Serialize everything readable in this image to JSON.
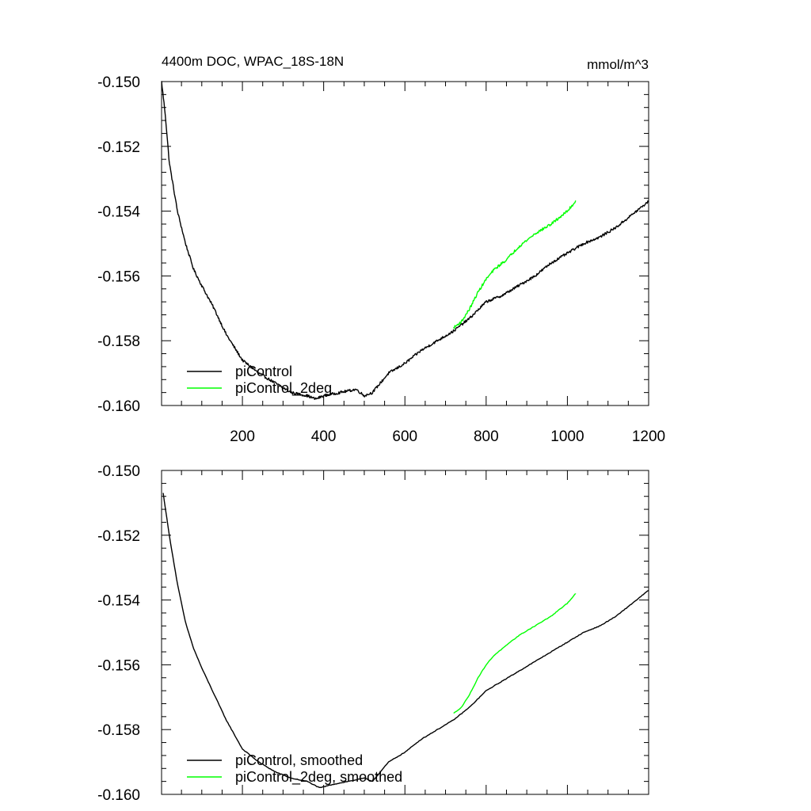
{
  "chart_data": [
    {
      "type": "line",
      "title": "4400m DOC, WPAC_18S-18N",
      "units": "mmol/m^3",
      "xlim": [
        1,
        1200
      ],
      "ylim": [
        -0.16,
        -0.15
      ],
      "x_ticks": [
        200,
        400,
        600,
        800,
        1000,
        1200
      ],
      "x_tick_labels": [
        "200",
        "400",
        "600",
        "800",
        "1000",
        "1200"
      ],
      "y_ticks": [
        -0.15,
        -0.152,
        -0.154,
        -0.156,
        -0.158,
        -0.16
      ],
      "y_tick_labels": [
        "-0.150",
        "-0.152",
        "-0.154",
        "-0.156",
        "-0.158",
        "-0.160"
      ],
      "grid": false,
      "legend_position": "bottom-left",
      "series": [
        {
          "name": "piControl",
          "color": "#000000",
          "noisy": true,
          "points": [
            [
              1,
              -0.15
            ],
            [
              10,
              -0.151
            ],
            [
              20,
              -0.1525
            ],
            [
              40,
              -0.154
            ],
            [
              60,
              -0.155
            ],
            [
              80,
              -0.1558
            ],
            [
              100,
              -0.1563
            ],
            [
              130,
              -0.157
            ],
            [
              160,
              -0.1578
            ],
            [
              200,
              -0.1586
            ],
            [
              240,
              -0.159
            ],
            [
              280,
              -0.1593
            ],
            [
              320,
              -0.1596
            ],
            [
              360,
              -0.1597
            ],
            [
              380,
              -0.1598
            ],
            [
              400,
              -0.1597
            ],
            [
              440,
              -0.1596
            ],
            [
              480,
              -0.1595
            ],
            [
              500,
              -0.1597
            ],
            [
              520,
              -0.1596
            ],
            [
              540,
              -0.1593
            ],
            [
              560,
              -0.159
            ],
            [
              600,
              -0.1587
            ],
            [
              640,
              -0.1583
            ],
            [
              680,
              -0.158
            ],
            [
              720,
              -0.1577
            ],
            [
              760,
              -0.1573
            ],
            [
              800,
              -0.1568
            ],
            [
              840,
              -0.1566
            ],
            [
              880,
              -0.1563
            ],
            [
              920,
              -0.156
            ],
            [
              960,
              -0.1556
            ],
            [
              1000,
              -0.1553
            ],
            [
              1040,
              -0.155
            ],
            [
              1080,
              -0.1548
            ],
            [
              1120,
              -0.1545
            ],
            [
              1160,
              -0.1541
            ],
            [
              1200,
              -0.1537
            ]
          ]
        },
        {
          "name": "piControl_2deg",
          "color": "#00ff00",
          "noisy": true,
          "points": [
            [
              720,
              -0.1576
            ],
            [
              740,
              -0.1574
            ],
            [
              760,
              -0.157
            ],
            [
              780,
              -0.1565
            ],
            [
              800,
              -0.1561
            ],
            [
              820,
              -0.1558
            ],
            [
              850,
              -0.1555
            ],
            [
              880,
              -0.1551
            ],
            [
              920,
              -0.1547
            ],
            [
              960,
              -0.1544
            ],
            [
              1000,
              -0.154
            ],
            [
              1020,
              -0.1537
            ]
          ]
        }
      ]
    },
    {
      "type": "line",
      "title": "",
      "xlim": [
        1,
        1200
      ],
      "ylim": [
        -0.16,
        -0.15
      ],
      "y_ticks": [
        -0.15,
        -0.152,
        -0.154,
        -0.156,
        -0.158,
        -0.16
      ],
      "y_tick_labels": [
        "-0.150",
        "-0.152",
        "-0.154",
        "-0.156",
        "-0.158",
        "-0.160"
      ],
      "grid": false,
      "legend_position": "bottom-left",
      "series": [
        {
          "name": "piControl, smoothed",
          "color": "#000000",
          "noisy": false,
          "points": [
            [
              5,
              -0.1507
            ],
            [
              20,
              -0.152
            ],
            [
              40,
              -0.1535
            ],
            [
              60,
              -0.1547
            ],
            [
              80,
              -0.1555
            ],
            [
              100,
              -0.1561
            ],
            [
              130,
              -0.1569
            ],
            [
              160,
              -0.1577
            ],
            [
              200,
              -0.1586
            ],
            [
              240,
              -0.159
            ],
            [
              280,
              -0.1593
            ],
            [
              320,
              -0.1595
            ],
            [
              360,
              -0.1596
            ],
            [
              390,
              -0.1598
            ],
            [
              420,
              -0.1597
            ],
            [
              460,
              -0.1596
            ],
            [
              500,
              -0.1595
            ],
            [
              520,
              -0.1596
            ],
            [
              540,
              -0.1593
            ],
            [
              560,
              -0.159
            ],
            [
              600,
              -0.1587
            ],
            [
              640,
              -0.1583
            ],
            [
              680,
              -0.158
            ],
            [
              720,
              -0.1577
            ],
            [
              760,
              -0.1573
            ],
            [
              800,
              -0.1568
            ],
            [
              840,
              -0.1565
            ],
            [
              880,
              -0.1562
            ],
            [
              920,
              -0.1559
            ],
            [
              960,
              -0.1556
            ],
            [
              1000,
              -0.1553
            ],
            [
              1040,
              -0.155
            ],
            [
              1080,
              -0.1548
            ],
            [
              1120,
              -0.1545
            ],
            [
              1160,
              -0.1541
            ],
            [
              1200,
              -0.1537
            ]
          ]
        },
        {
          "name": "piControl_2deg, smoothed",
          "color": "#00ff00",
          "noisy": false,
          "points": [
            [
              720,
              -0.1575
            ],
            [
              740,
              -0.1573
            ],
            [
              760,
              -0.1569
            ],
            [
              780,
              -0.1564
            ],
            [
              800,
              -0.156
            ],
            [
              820,
              -0.1557
            ],
            [
              850,
              -0.1554
            ],
            [
              880,
              -0.1551
            ],
            [
              920,
              -0.1548
            ],
            [
              960,
              -0.1545
            ],
            [
              1000,
              -0.1541
            ],
            [
              1020,
              -0.1538
            ]
          ]
        }
      ]
    }
  ]
}
